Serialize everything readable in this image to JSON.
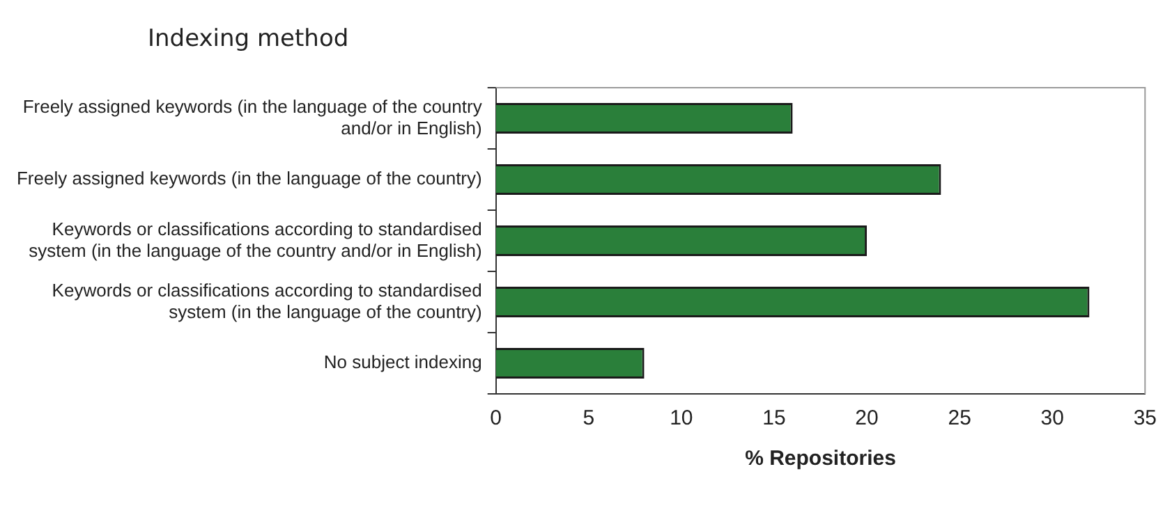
{
  "chart_data": {
    "type": "bar",
    "orientation": "horizontal",
    "title": "Indexing method",
    "xlabel": "% Repositories",
    "categories": [
      "Freely assigned keywords (in the language of the country and/or in English)",
      "Freely assigned keywords (in the language of the country)",
      "Keywords or classifications according to standardised system (in the language of the country and/or in English)",
      "Keywords or classifications according to standardised system (in the language of the country)",
      "No subject indexing"
    ],
    "values": [
      16,
      24,
      20,
      32,
      8
    ],
    "color": "#2a7f3a",
    "xlim": [
      0,
      35
    ],
    "xticks": [
      0,
      5,
      10,
      15,
      20,
      25,
      30,
      35
    ],
    "grid": false,
    "legend": false
  }
}
